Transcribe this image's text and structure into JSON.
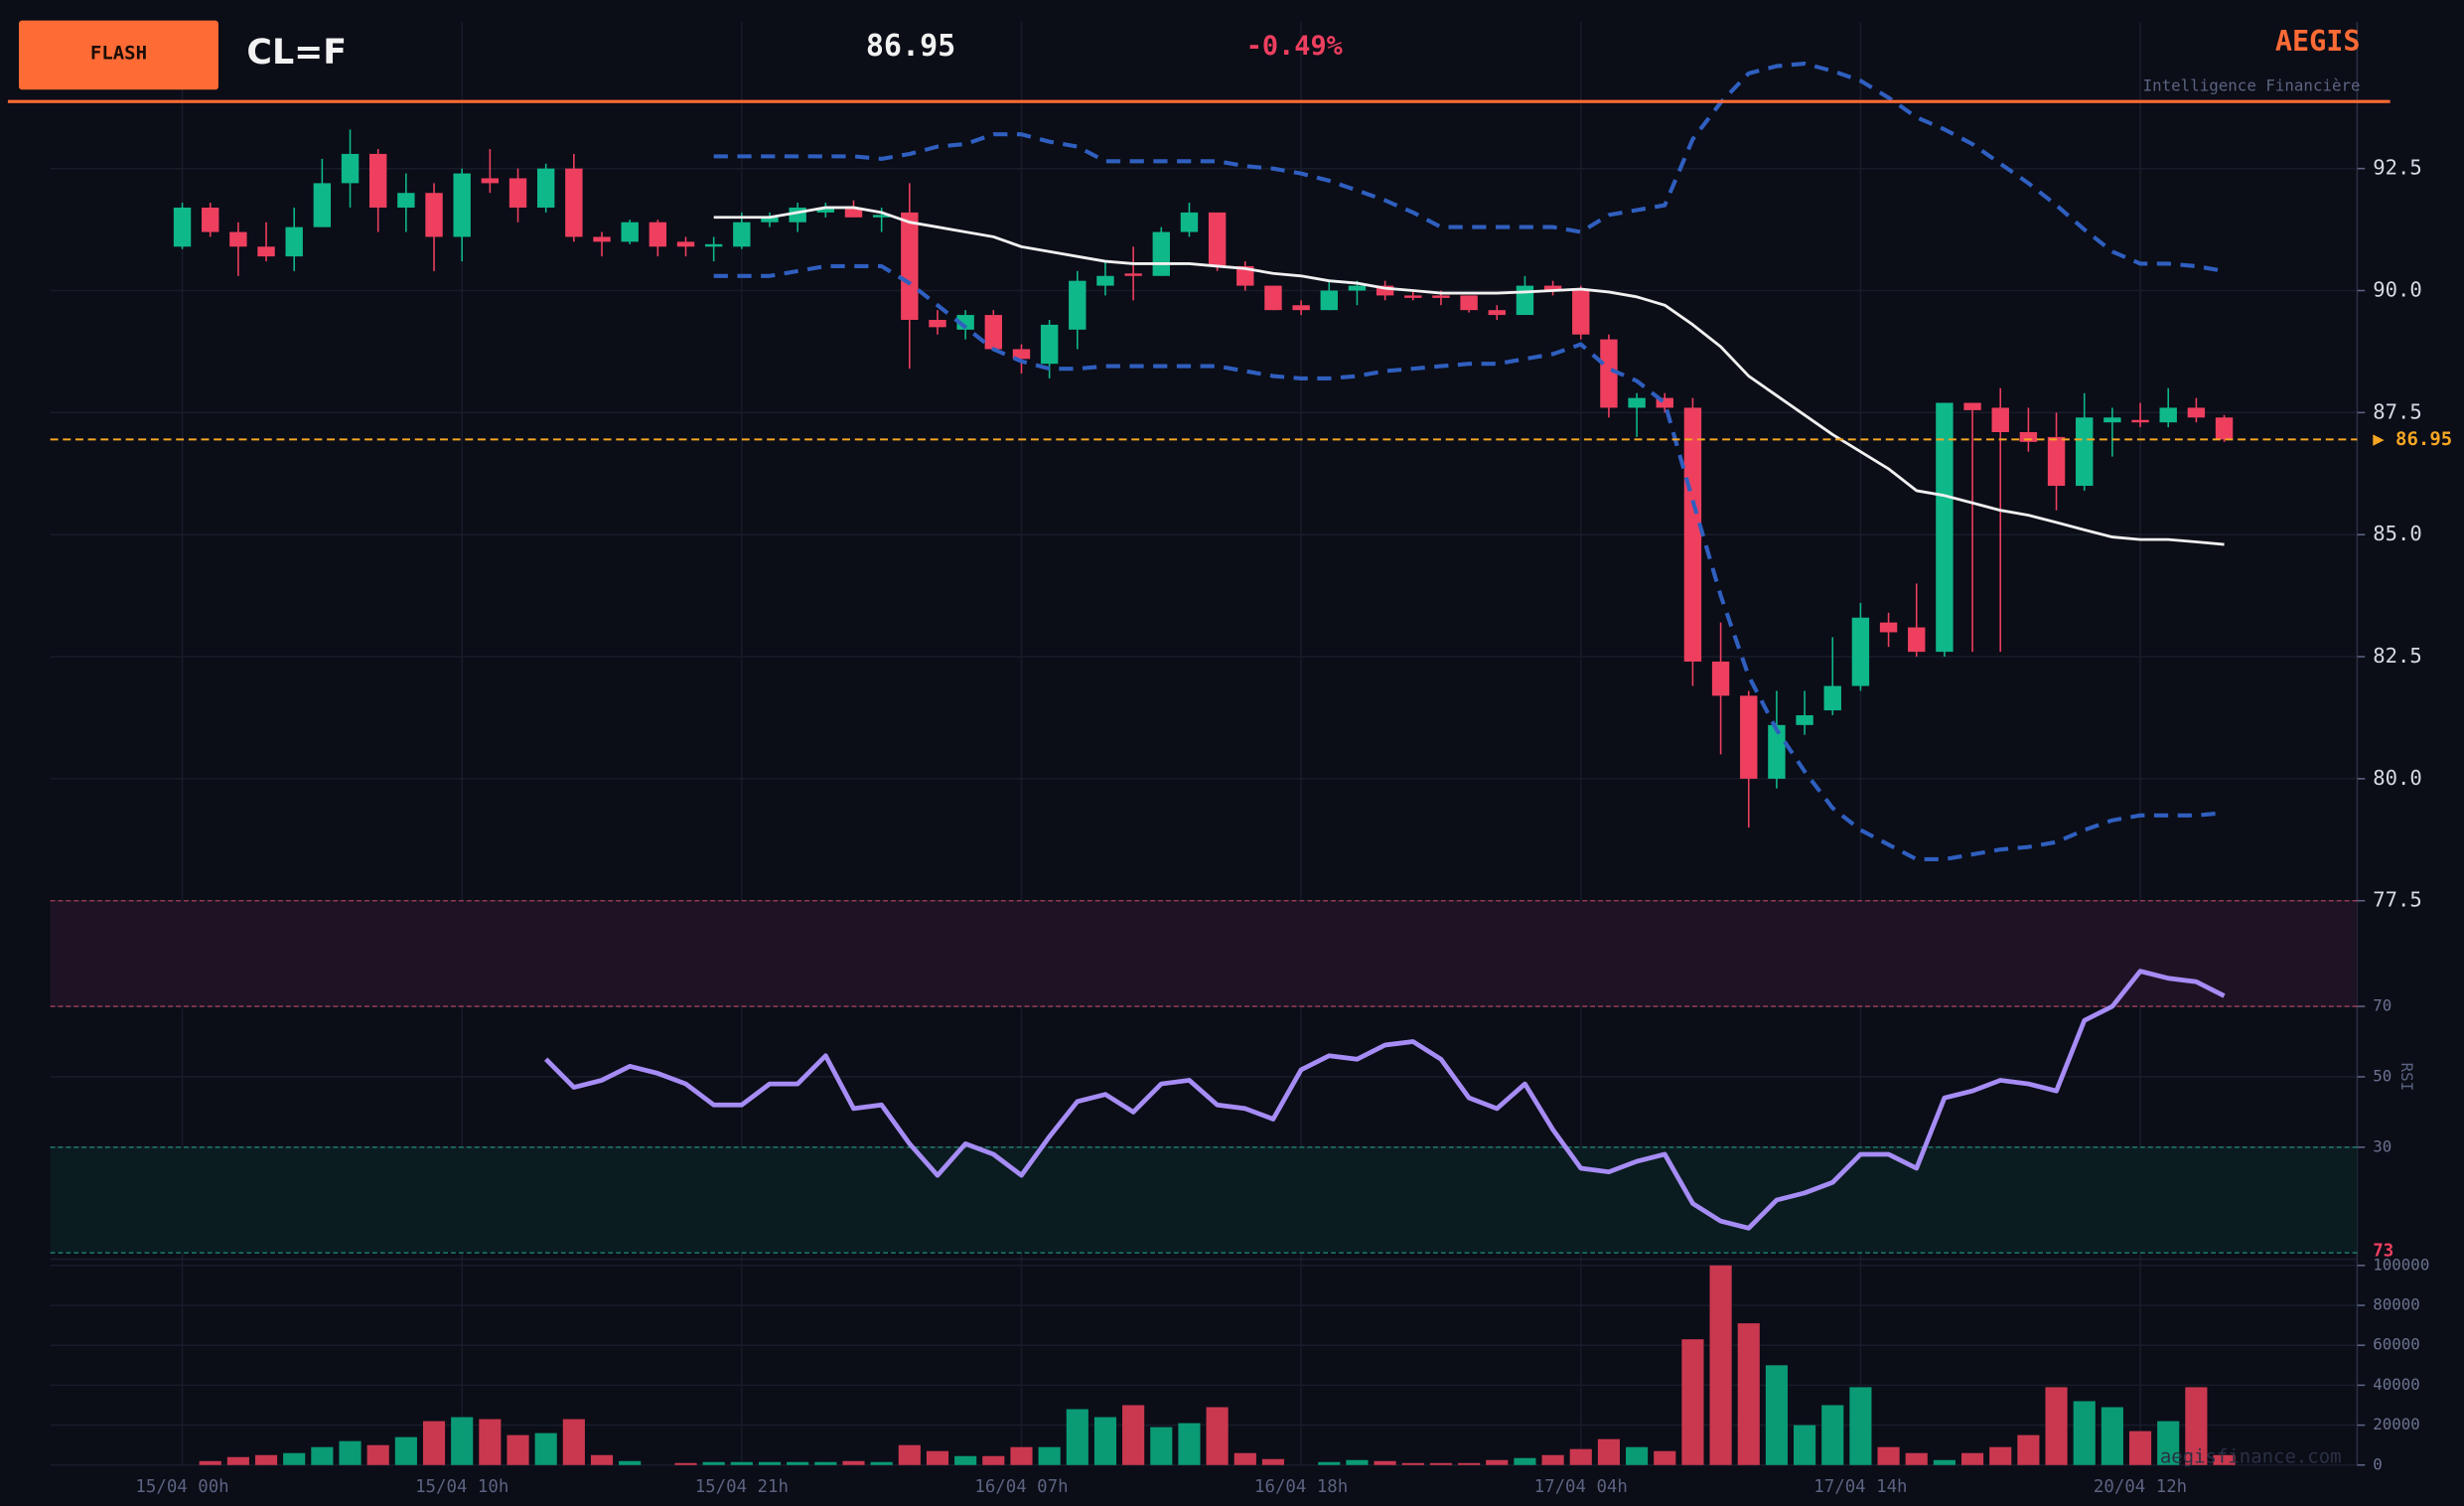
{
  "header": {
    "badge": "FLASH",
    "symbol": "CL=F",
    "change": "-0.49%",
    "brand": "AEGIS",
    "tagline": "Intelligence Financière",
    "watermark": "aegisfinance.com"
  },
  "chart_data": [
    {
      "type": "candlestick",
      "categories": [
        "15/04 00h",
        null,
        null,
        null,
        null,
        null,
        null,
        null,
        null,
        null,
        "15/04 10h",
        null,
        null,
        null,
        null,
        null,
        null,
        null,
        null,
        null,
        "15/04 21h",
        null,
        null,
        null,
        null,
        null,
        null,
        null,
        null,
        null,
        "16/04 07h",
        null,
        null,
        null,
        null,
        null,
        null,
        null,
        null,
        null,
        "16/04 18h",
        null,
        null,
        null,
        null,
        null,
        null,
        null,
        null,
        null,
        "17/04 04h",
        null,
        null,
        null,
        null,
        null,
        null,
        null,
        null,
        null,
        "17/04 14h",
        null,
        null,
        null,
        null,
        null,
        null,
        null,
        null,
        null,
        "20/04 12h",
        null,
        null,
        null
      ],
      "open": [
        90.9,
        91.7,
        91.2,
        90.9,
        90.7,
        91.3,
        92.2,
        92.8,
        91.7,
        92.0,
        91.1,
        92.3,
        92.3,
        91.7,
        92.5,
        91.1,
        91.0,
        91.4,
        91.0,
        90.9,
        90.9,
        91.4,
        91.4,
        91.6,
        91.7,
        91.5,
        91.6,
        89.4,
        89.2,
        89.5,
        88.8,
        88.5,
        89.2,
        90.1,
        90.35,
        90.3,
        91.2,
        91.6,
        90.5,
        90.1,
        89.7,
        89.6,
        90.0,
        90.1,
        89.9,
        89.9,
        89.9,
        89.6,
        89.5,
        90.1,
        90.0,
        89.0,
        87.6,
        87.8,
        87.6,
        82.4,
        81.7,
        80.0,
        81.1,
        81.4,
        81.9,
        83.2,
        83.1,
        82.6,
        87.7,
        87.6,
        87.1,
        87.0,
        86.0,
        87.3,
        87.35,
        87.3,
        87.6,
        87.4
      ],
      "high": [
        91.8,
        91.8,
        91.4,
        91.4,
        91.7,
        92.7,
        93.3,
        92.9,
        92.4,
        92.2,
        92.5,
        92.9,
        92.5,
        92.6,
        92.8,
        91.2,
        91.45,
        91.45,
        91.1,
        91.1,
        91.6,
        91.6,
        91.8,
        91.8,
        91.85,
        91.7,
        92.2,
        89.6,
        89.6,
        89.6,
        88.9,
        89.4,
        90.4,
        90.6,
        90.9,
        91.3,
        91.8,
        91.6,
        90.6,
        90.1,
        89.8,
        90.2,
        90.2,
        90.2,
        90.0,
        90.0,
        89.9,
        89.7,
        90.3,
        90.2,
        90.1,
        89.1,
        87.9,
        87.9,
        87.8,
        83.2,
        81.8,
        81.8,
        81.8,
        82.9,
        83.6,
        83.4,
        84.0,
        87.7,
        87.7,
        88.0,
        87.6,
        87.5,
        87.9,
        87.6,
        87.7,
        88.0,
        87.8,
        87.45
      ],
      "low": [
        90.85,
        91.1,
        90.3,
        90.6,
        90.4,
        91.3,
        91.7,
        91.2,
        91.2,
        90.4,
        90.6,
        92.0,
        91.4,
        91.6,
        91.0,
        90.7,
        90.95,
        90.7,
        90.7,
        90.6,
        90.85,
        91.3,
        91.2,
        91.5,
        91.5,
        91.2,
        88.4,
        89.1,
        89.0,
        88.8,
        88.3,
        88.2,
        88.8,
        89.9,
        89.8,
        90.3,
        91.1,
        90.4,
        90.0,
        89.6,
        89.5,
        89.6,
        89.7,
        89.8,
        89.8,
        89.7,
        89.55,
        89.4,
        89.5,
        89.9,
        89.0,
        87.4,
        87.0,
        87.5,
        81.9,
        80.5,
        79.0,
        79.8,
        80.9,
        81.3,
        81.8,
        82.7,
        82.5,
        82.5,
        82.6,
        82.6,
        86.7,
        85.5,
        85.9,
        86.6,
        87.2,
        87.2,
        87.3,
        86.9
      ],
      "close": [
        91.7,
        91.2,
        90.9,
        90.7,
        91.3,
        92.2,
        92.8,
        91.7,
        92.0,
        91.1,
        92.4,
        92.2,
        91.7,
        92.5,
        91.1,
        91.0,
        91.4,
        90.9,
        90.9,
        90.95,
        91.4,
        91.5,
        91.7,
        91.7,
        91.5,
        91.55,
        89.4,
        89.25,
        89.5,
        88.8,
        88.6,
        89.3,
        90.2,
        90.3,
        90.3,
        91.2,
        91.6,
        90.5,
        90.1,
        89.6,
        89.6,
        90.0,
        90.1,
        89.9,
        89.85,
        89.85,
        89.6,
        89.5,
        90.1,
        90.0,
        89.1,
        87.6,
        87.8,
        87.6,
        82.4,
        81.7,
        80.0,
        81.1,
        81.3,
        81.9,
        83.3,
        83.0,
        82.6,
        87.7,
        87.55,
        87.1,
        86.9,
        86.0,
        87.4,
        87.4,
        87.3,
        87.6,
        87.4,
        86.95
      ],
      "up_color": "#0fb889",
      "down_color": "#ee3f5f",
      "series": [
        {
          "color": "#f0f0f0",
          "dashed": false,
          "values": [
            null,
            null,
            null,
            null,
            null,
            null,
            null,
            null,
            null,
            null,
            null,
            null,
            null,
            null,
            null,
            null,
            null,
            null,
            null,
            91.5,
            91.5,
            91.5,
            91.6,
            91.7,
            91.7,
            91.6,
            91.4,
            91.3,
            91.2,
            91.1,
            90.9,
            90.8,
            90.7,
            90.6,
            90.55,
            90.55,
            90.55,
            90.5,
            90.45,
            90.35,
            90.3,
            90.2,
            90.15,
            90.05,
            90.0,
            89.95,
            89.95,
            89.95,
            89.97,
            90.0,
            90.03,
            89.97,
            89.87,
            89.7,
            89.3,
            88.85,
            88.25,
            87.85,
            87.45,
            87.05,
            86.7,
            86.35,
            85.9,
            85.8,
            85.65,
            85.5,
            85.4,
            85.25,
            85.1,
            84.95,
            84.9,
            84.9,
            84.85,
            84.8
          ]
        },
        {
          "color": "#2f5fbf",
          "dashed": true,
          "values": [
            null,
            null,
            null,
            null,
            null,
            null,
            null,
            null,
            null,
            null,
            null,
            null,
            null,
            null,
            null,
            null,
            null,
            null,
            null,
            92.75,
            92.75,
            92.75,
            92.75,
            92.75,
            92.75,
            92.7,
            92.8,
            92.95,
            93.0,
            93.2,
            93.2,
            93.05,
            92.95,
            92.65,
            92.65,
            92.65,
            92.65,
            92.65,
            92.55,
            92.5,
            92.4,
            92.25,
            92.05,
            91.85,
            91.6,
            91.3,
            91.3,
            91.3,
            91.3,
            91.3,
            91.2,
            91.55,
            91.65,
            91.75,
            93.1,
            93.85,
            94.45,
            94.6,
            94.65,
            94.5,
            94.3,
            93.95,
            93.55,
            93.3,
            93.0,
            92.6,
            92.2,
            91.75,
            91.25,
            90.8,
            90.55,
            90.55,
            90.5,
            90.4
          ]
        },
        {
          "color": "#2f5fbf",
          "dashed": true,
          "values": [
            null,
            null,
            null,
            null,
            null,
            null,
            null,
            null,
            null,
            null,
            null,
            null,
            null,
            null,
            null,
            null,
            null,
            null,
            null,
            90.3,
            90.3,
            90.3,
            90.4,
            90.5,
            90.5,
            90.5,
            90.15,
            89.7,
            89.25,
            88.8,
            88.55,
            88.4,
            88.4,
            88.45,
            88.45,
            88.45,
            88.45,
            88.45,
            88.35,
            88.25,
            88.2,
            88.2,
            88.25,
            88.35,
            88.4,
            88.45,
            88.5,
            88.5,
            88.6,
            88.7,
            88.9,
            88.4,
            88.15,
            87.7,
            85.7,
            83.75,
            82.1,
            81.0,
            80.15,
            79.4,
            78.95,
            78.65,
            78.35,
            78.35,
            78.45,
            78.55,
            78.6,
            78.7,
            78.95,
            79.15,
            79.25,
            79.25,
            79.25,
            79.3
          ]
        }
      ],
      "price_line": {
        "value": 86.95,
        "label": "▶ 86.95",
        "color": "#f5a623"
      },
      "ylim": [
        77.5,
        95.5
      ],
      "yticks": [
        77.5,
        {
          "value": 80,
          "label": "80.0"
        },
        82.5,
        {
          "value": 85,
          "label": "85.0"
        },
        87.5,
        {
          "value": 90,
          "label": "90.0"
        },
        92.5
      ],
      "grid": true
    },
    {
      "type": "line",
      "y_label": "RSI",
      "color": "#a68cf5",
      "values": [
        null,
        null,
        null,
        null,
        null,
        null,
        null,
        null,
        null,
        null,
        null,
        null,
        null,
        55,
        47,
        49,
        53,
        51,
        48,
        42,
        42,
        48,
        48,
        56,
        41,
        42,
        31,
        22,
        31,
        28,
        22,
        33,
        43,
        45,
        40,
        48,
        49,
        42,
        41,
        38,
        52,
        56,
        55,
        59,
        60,
        55,
        44,
        41,
        48,
        35,
        24,
        23,
        26,
        28,
        14,
        9,
        7,
        15,
        17,
        20,
        28,
        28,
        24,
        44,
        46,
        49,
        48,
        46,
        66,
        70,
        80,
        78,
        77,
        73
      ],
      "zones": [
        {
          "from": 70,
          "to": 100,
          "color": "#1e1324",
          "line_color": "#a8405a"
        },
        {
          "from": 0,
          "to": 30,
          "color": "#0a1c1f",
          "line_color": "#1f8f7a"
        }
      ],
      "ylim": [
        0,
        100
      ],
      "yticks": [
        30,
        50,
        70
      ],
      "grid": true,
      "value_label_color": "#ee3f5f"
    },
    {
      "type": "bar",
      "values": [
        0,
        2000,
        4000,
        5000,
        6000,
        9000,
        12000,
        10000,
        14000,
        22000,
        24000,
        23000,
        15000,
        16000,
        23000,
        5000,
        2000,
        0,
        1000,
        1500,
        1500,
        1500,
        1500,
        1500,
        2000,
        1500,
        10000,
        7000,
        4500,
        4500,
        9000,
        9000,
        28000,
        24000,
        30000,
        19000,
        21000,
        29000,
        6000,
        3000,
        0,
        1500,
        2500,
        2000,
        1000,
        1000,
        1000,
        2500,
        3500,
        5000,
        8000,
        13000,
        9000,
        7000,
        63000,
        100000,
        71000,
        50000,
        20000,
        30000,
        39000,
        9000,
        6000,
        2500,
        6000,
        9000,
        15000,
        39000,
        32000,
        29000,
        17000,
        22000,
        39000,
        5000
      ],
      "up_color": "#0a9a74",
      "down_color": "#c9384f",
      "ylim": [
        0,
        100000
      ],
      "yticks": [
        0,
        20000,
        40000,
        60000,
        80000,
        100000
      ],
      "grid": true
    }
  ]
}
